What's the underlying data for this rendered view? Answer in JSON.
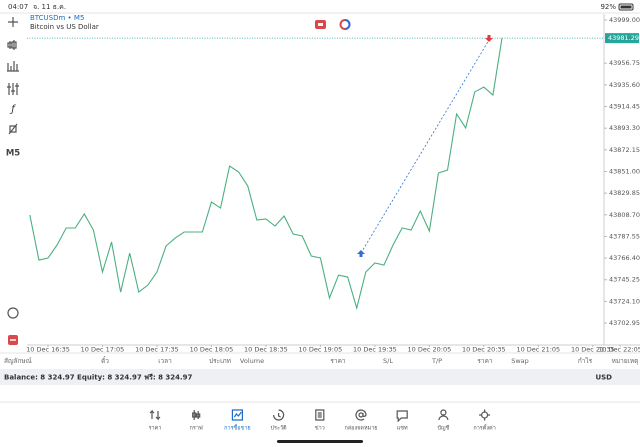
{
  "status_bar": {
    "time": "04:07",
    "date": "จ. 11 ธ.ค.",
    "battery": "92%"
  },
  "toolbar": {
    "timeframe": "M5"
  },
  "chart_data": {
    "type": "line",
    "title": "BTCUSDm • M5",
    "subtitle": "Bitcoin vs US Dollar",
    "color": "#4caf80",
    "categories": [
      null,
      null,
      "10 Dec 16:35",
      null,
      null,
      null,
      null,
      null,
      "10 Dec 17:05",
      null,
      null,
      null,
      null,
      null,
      "10 Dec 17:35",
      null,
      null,
      null,
      null,
      null,
      "10 Dec 18:05",
      null,
      null,
      null,
      null,
      null,
      "10 Dec 18:35",
      null,
      null,
      null,
      null,
      null,
      "10 Dec 19:05",
      null,
      null,
      null,
      null,
      null,
      "10 Dec 19:35",
      null,
      null,
      null,
      null,
      null,
      "10 Dec 20:05",
      null,
      null,
      null,
      null,
      null,
      "10 Dec 20:35",
      null,
      null,
      null,
      null,
      null,
      "10 Dec 21:05",
      null,
      null,
      null,
      null,
      null,
      "10 Dec 21:35",
      null,
      null,
      null,
      null,
      null,
      "10 Dec 22:05"
    ],
    "values": [
      43808.5,
      43764.5,
      43766.5,
      43779.2,
      43795.8,
      43795.8,
      43809.5,
      43793.8,
      43752.8,
      43782.1,
      43733.2,
      43771.3,
      43733.2,
      43740.1,
      43752.8,
      43778.2,
      43786.0,
      43791.9,
      43791.9,
      43791.9,
      43821.2,
      43815.3,
      43856.3,
      43850.5,
      43836.8,
      43803.6,
      43804.6,
      43797.7,
      43807.5,
      43789.9,
      43788.0,
      43768.4,
      43766.5,
      43727.4,
      43749.8,
      43747.9,
      43717.6,
      43752.8,
      43761.6,
      43759.6,
      43779.2,
      43795.8,
      43793.8,
      43812.4,
      43792.8,
      43849.5,
      43852.4,
      43907.2,
      43893.5,
      43928.7,
      43933.5,
      43925.7,
      43981.29,
      null,
      null,
      null,
      null,
      null,
      null,
      null,
      null,
      null,
      null,
      null,
      null,
      null,
      null,
      null,
      null
    ],
    "ylim": [
      43681.5,
      44006.8
    ],
    "yticks": [
      {
        "value": 43999.0,
        "label": "43999.00"
      },
      {
        "value": 43956.75,
        "label": "43956.75"
      },
      {
        "value": 43935.6,
        "label": "43935.60"
      },
      {
        "value": 43914.45,
        "label": "43914.45"
      },
      {
        "value": 43893.3,
        "label": "43893.30"
      },
      {
        "value": 43872.15,
        "label": "43872.15"
      },
      {
        "value": 43851.0,
        "label": "43851.00"
      },
      {
        "value": 43829.85,
        "label": "43829.85"
      },
      {
        "value": 43808.7,
        "label": "43808.70"
      },
      {
        "value": 43787.55,
        "label": "43787.55"
      },
      {
        "value": 43766.4,
        "label": "43766.40"
      },
      {
        "value": 43745.25,
        "label": "43745.25"
      },
      {
        "value": 43724.1,
        "label": "43724.10"
      },
      {
        "value": 43702.95,
        "label": "43702.95"
      }
    ],
    "grid": false
  },
  "trade_table": {
    "columns": [
      "สัญลักษณ์",
      "ตั๋ว",
      "เวลา",
      "ประเภท",
      "Volume",
      "ราคา",
      "S/L",
      "T/P",
      "ราคา",
      "Swap",
      "กำไร",
      "หมายเหตุ"
    ]
  },
  "account": {
    "summary": "Balance: 8 324.97 Equity: 8 324.97 ฟรี: 8 324.97",
    "currency": "USD"
  },
  "nav": [
    "ราคา",
    "กราฟ",
    "การซื้อขาย",
    "ประวัติ",
    "ข่าว",
    "กล่องจดหมาย",
    "แชท",
    "บัญชี",
    "การตั้งค่า"
  ]
}
